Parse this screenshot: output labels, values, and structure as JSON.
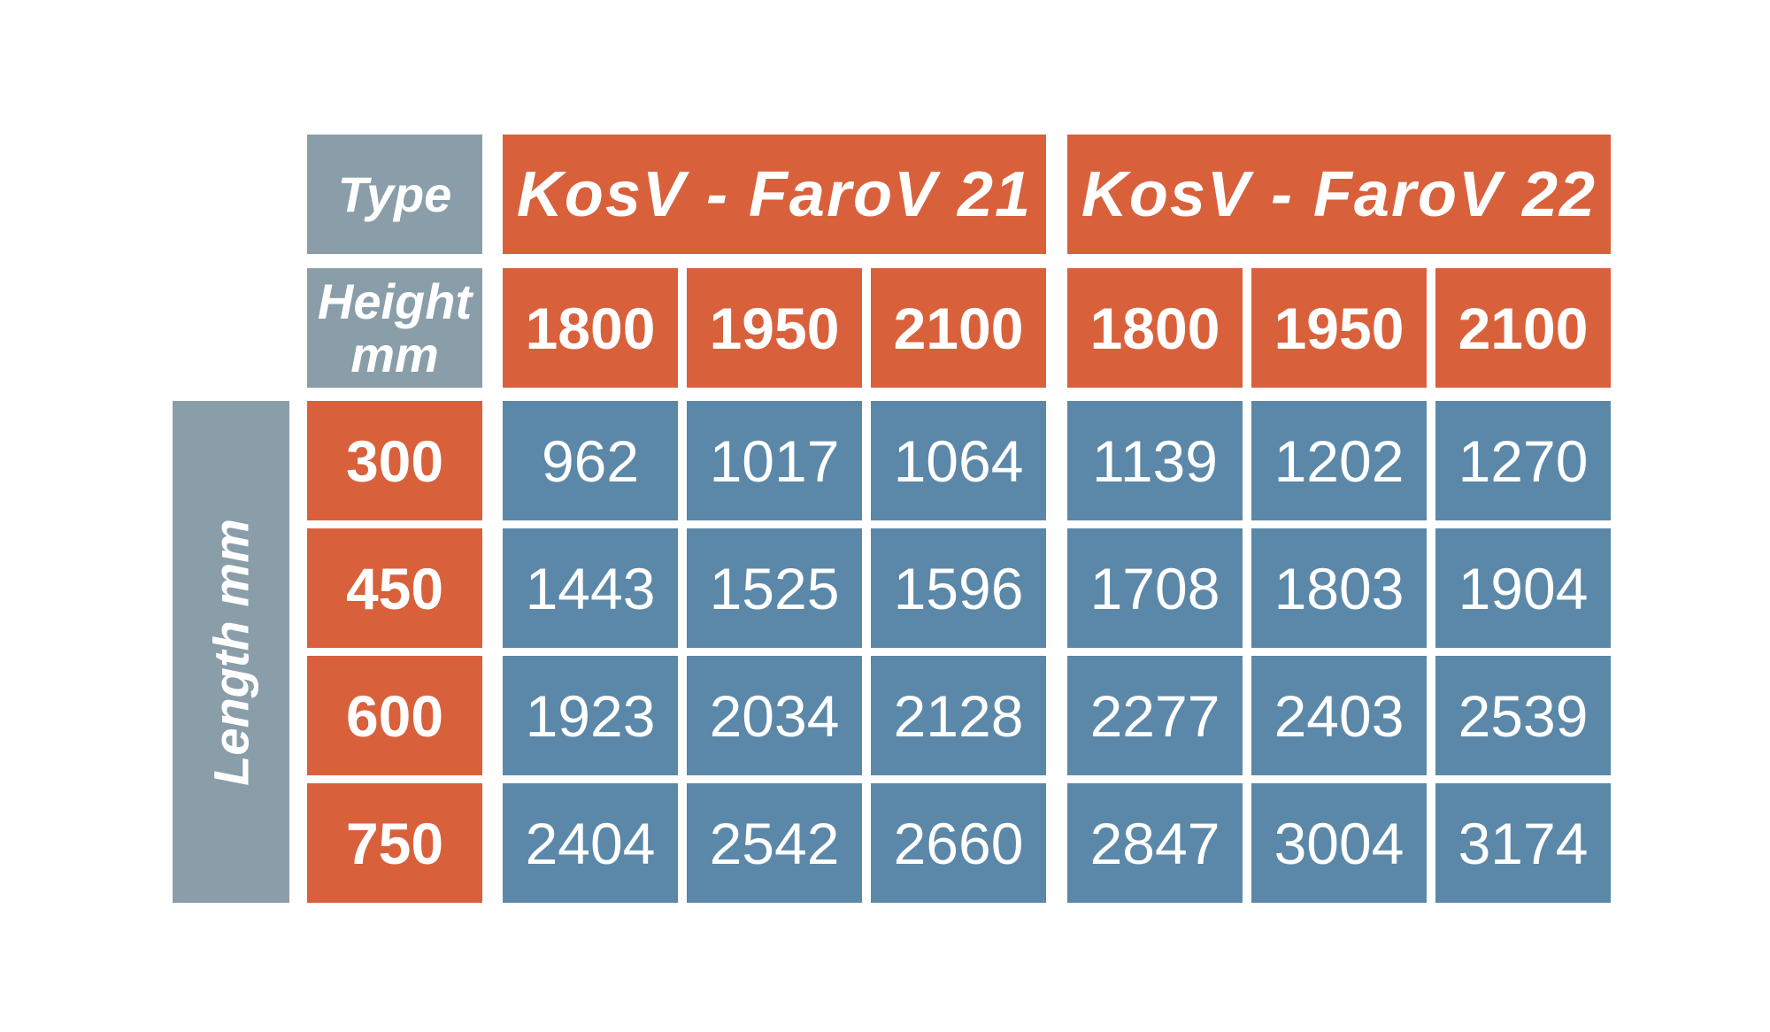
{
  "header": {
    "type_label": "Type",
    "height_label_line1": "Height",
    "height_label_line2": "mm",
    "groups": [
      "KosV - FaroV 21",
      "KosV - FaroV 22"
    ],
    "heights": [
      "1800",
      "1950",
      "2100",
      "1800",
      "1950",
      "2100"
    ]
  },
  "side_label": "Length mm",
  "rows": [
    {
      "length": "300",
      "values": [
        "962",
        "1017",
        "1064",
        "1139",
        "1202",
        "1270"
      ]
    },
    {
      "length": "450",
      "values": [
        "1443",
        "1525",
        "1596",
        "1708",
        "1803",
        "1904"
      ]
    },
    {
      "length": "600",
      "values": [
        "1923",
        "2034",
        "2128",
        "2277",
        "2403",
        "2539"
      ]
    },
    {
      "length": "750",
      "values": [
        "2404",
        "2542",
        "2660",
        "2847",
        "3004",
        "3174"
      ]
    }
  ],
  "colors": {
    "label_bg": "#8a9ea9",
    "header_bg": "#d8613c",
    "data_bg": "#5b88a8",
    "text": "#ffffff"
  }
}
